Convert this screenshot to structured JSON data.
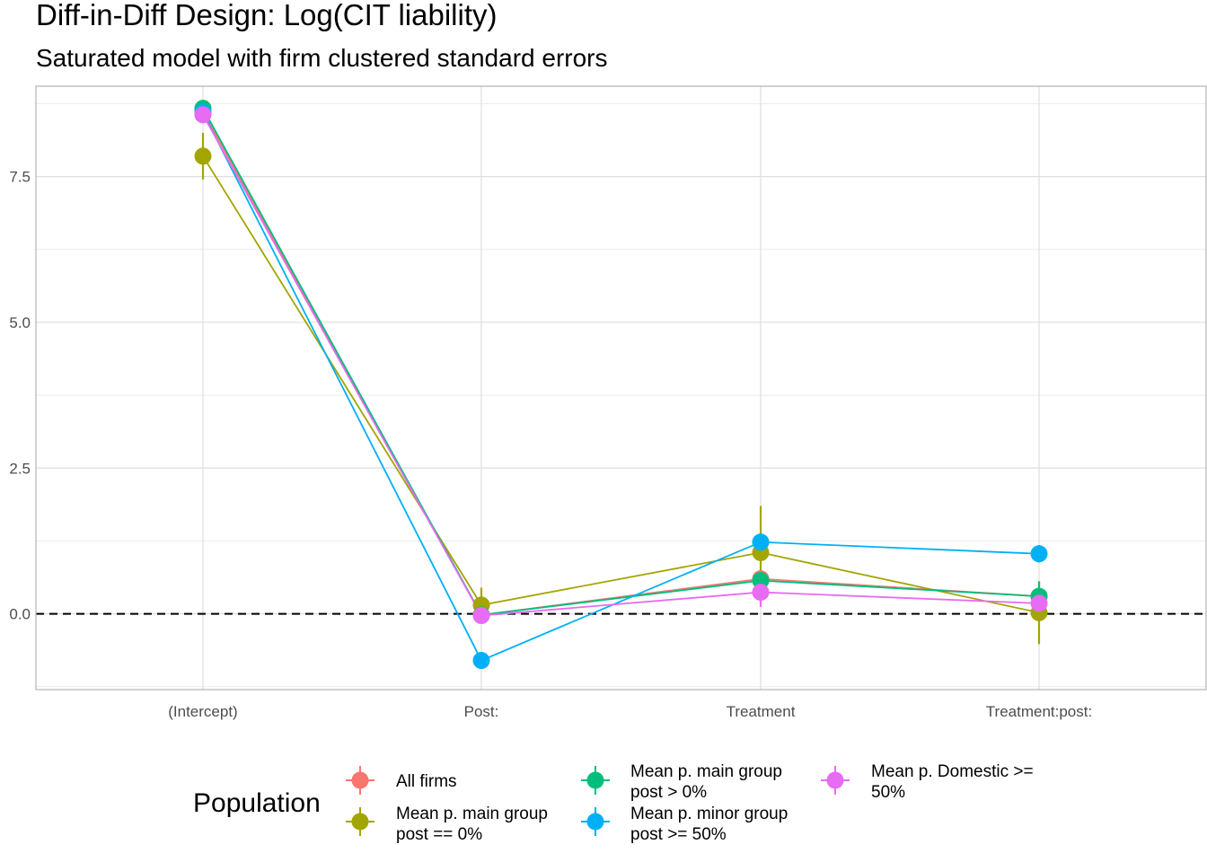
{
  "chart_data": {
    "type": "scatter",
    "title": "Diff-in-Diff Design: Log(CIT liability)",
    "subtitle": "Saturated model with firm clustered standard errors",
    "xlabel": "",
    "ylabel": "",
    "categories": [
      "(Intercept)",
      "Post:",
      "Treatment",
      "Treatment:post:"
    ],
    "y_ticks": [
      0.0,
      2.5,
      5.0,
      7.5
    ],
    "y_tick_labels": [
      "0.0",
      "2.5",
      "5.0",
      "7.5"
    ],
    "ylim": [
      -1.3,
      9.05
    ],
    "grid": true,
    "reference_line": 0,
    "legend": {
      "title": "Population",
      "position": "bottom"
    },
    "series": [
      {
        "name": "All firms",
        "label_lines": [
          "All firms"
        ],
        "color": "#F8766D",
        "values": [
          8.62,
          -0.02,
          0.6,
          0.3
        ],
        "lower": [
          8.52,
          -0.1,
          0.45,
          0.15
        ],
        "upper": [
          8.72,
          0.06,
          0.75,
          0.45
        ]
      },
      {
        "name": "Mean p. main group post == 0%",
        "label_lines": [
          "Mean p. main group",
          "post == 0%"
        ],
        "color": "#A3A500",
        "values": [
          7.85,
          0.15,
          1.05,
          0.02
        ],
        "lower": [
          7.45,
          -0.15,
          0.25,
          -0.52
        ],
        "upper": [
          8.25,
          0.45,
          1.85,
          0.56
        ]
      },
      {
        "name": "Mean p. main group post > 0%",
        "label_lines": [
          "Mean p. main group",
          "post > 0%"
        ],
        "color": "#00BF7D",
        "values": [
          8.67,
          -0.02,
          0.57,
          0.3
        ],
        "lower": [
          8.57,
          -0.1,
          0.42,
          0.05
        ],
        "upper": [
          8.77,
          0.06,
          0.72,
          0.55
        ]
      },
      {
        "name": "Mean p. minor group post >= 50%",
        "label_lines": [
          "Mean p. minor group",
          "post >= 50%"
        ],
        "color": "#00B0F6",
        "values": [
          8.6,
          -0.8,
          1.23,
          1.03
        ],
        "lower": [
          8.5,
          -0.9,
          1.08,
          0.88
        ],
        "upper": [
          8.7,
          -0.7,
          1.38,
          1.18
        ]
      },
      {
        "name": "Mean p. Domestic >= 50%",
        "label_lines": [
          "Mean p. Domestic >=",
          "50%"
        ],
        "color": "#E76BF3",
        "values": [
          8.56,
          -0.03,
          0.37,
          0.18
        ],
        "lower": [
          8.46,
          -0.11,
          0.12,
          0.03
        ],
        "upper": [
          8.66,
          0.05,
          0.62,
          0.33
        ]
      }
    ]
  }
}
